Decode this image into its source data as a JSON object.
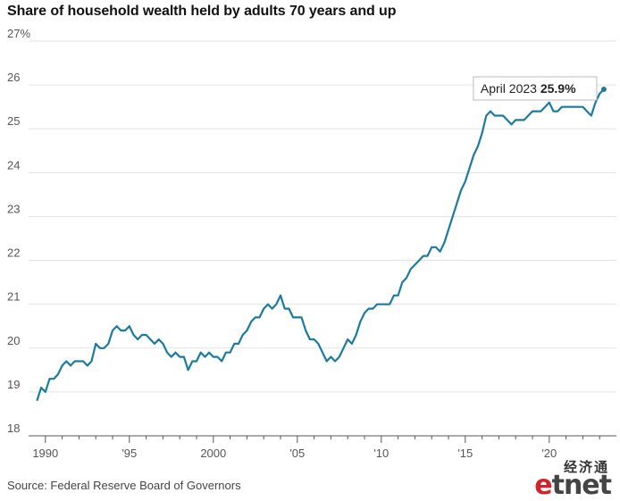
{
  "title": "Share of household wealth held by adults 70 years and up",
  "source": "Source: Federal Reserve Board of Governors",
  "logo": {
    "chinese": "经济通",
    "e_letter": "e",
    "rest": "tnet"
  },
  "colors": {
    "line": "#1a7aa0",
    "grid": "#e3e3e3",
    "axis": "#555555",
    "logo_red": "#d2232a"
  },
  "chart_data": {
    "type": "line",
    "title": "Share of household wealth held by adults 70 years and up",
    "xlabel": "",
    "ylabel": "",
    "ylim": [
      18,
      27
    ],
    "xlim": [
      1989.0,
      2024.0
    ],
    "y_ticks": [
      {
        "value": 18,
        "label": "18"
      },
      {
        "value": 19,
        "label": "19"
      },
      {
        "value": 20,
        "label": "20"
      },
      {
        "value": 21,
        "label": "21"
      },
      {
        "value": 22,
        "label": "22"
      },
      {
        "value": 23,
        "label": "23"
      },
      {
        "value": 24,
        "label": "24"
      },
      {
        "value": 25,
        "label": "25"
      },
      {
        "value": 26,
        "label": "26"
      },
      {
        "value": 27,
        "label": "27%"
      }
    ],
    "x_ticks": [
      {
        "value": 1990,
        "label": "1990"
      },
      {
        "value": 1995,
        "label": "'95"
      },
      {
        "value": 2000,
        "label": "2000"
      },
      {
        "value": 2005,
        "label": "'05"
      },
      {
        "value": 2010,
        "label": "'10"
      },
      {
        "value": 2015,
        "label": "'15"
      },
      {
        "value": 2020,
        "label": "'20"
      }
    ],
    "grid": true,
    "annotation": {
      "label": "April 2023 ",
      "value": "25.9%",
      "x": 2023.25,
      "y": 25.9
    },
    "series": [
      {
        "x": [
          1989.5,
          1989.75,
          1990.0,
          1990.25,
          1990.5,
          1990.75,
          1991.0,
          1991.25,
          1991.5,
          1991.75,
          1992.0,
          1992.25,
          1992.5,
          1992.75,
          1993.0,
          1993.25,
          1993.5,
          1993.75,
          1994.0,
          1994.25,
          1994.5,
          1994.75,
          1995.0,
          1995.25,
          1995.5,
          1995.75,
          1996.0,
          1996.25,
          1996.5,
          1996.75,
          1997.0,
          1997.25,
          1997.5,
          1997.75,
          1998.0,
          1998.25,
          1998.5,
          1998.75,
          1999.0,
          1999.25,
          1999.5,
          1999.75,
          2000.0,
          2000.25,
          2000.5,
          2000.75,
          2001.0,
          2001.25,
          2001.5,
          2001.75,
          2002.0,
          2002.25,
          2002.5,
          2002.75,
          2003.0,
          2003.25,
          2003.5,
          2003.75,
          2004.0,
          2004.25,
          2004.5,
          2004.75,
          2005.0,
          2005.25,
          2005.5,
          2005.75,
          2006.0,
          2006.25,
          2006.5,
          2006.75,
          2007.0,
          2007.25,
          2007.5,
          2007.75,
          2008.0,
          2008.25,
          2008.5,
          2008.75,
          2009.0,
          2009.25,
          2009.5,
          2009.75,
          2010.0,
          2010.25,
          2010.5,
          2010.75,
          2011.0,
          2011.25,
          2011.5,
          2011.75,
          2012.0,
          2012.25,
          2012.5,
          2012.75,
          2013.0,
          2013.25,
          2013.5,
          2013.75,
          2014.0,
          2014.25,
          2014.5,
          2014.75,
          2015.0,
          2015.25,
          2015.5,
          2015.75,
          2016.0,
          2016.25,
          2016.5,
          2016.75,
          2017.0,
          2017.25,
          2017.5,
          2017.75,
          2018.0,
          2018.25,
          2018.5,
          2018.75,
          2019.0,
          2019.25,
          2019.5,
          2019.75,
          2020.0,
          2020.25,
          2020.5,
          2020.75,
          2021.0,
          2021.25,
          2021.5,
          2021.75,
          2022.0,
          2022.25,
          2022.5,
          2022.75,
          2023.0,
          2023.25
        ],
        "values": [
          18.8,
          19.1,
          19.0,
          19.3,
          19.3,
          19.4,
          19.6,
          19.7,
          19.6,
          19.7,
          19.7,
          19.7,
          19.6,
          19.7,
          20.1,
          20.0,
          20.0,
          20.1,
          20.4,
          20.5,
          20.4,
          20.4,
          20.5,
          20.3,
          20.2,
          20.3,
          20.3,
          20.2,
          20.1,
          20.2,
          20.1,
          19.9,
          19.8,
          19.9,
          19.8,
          19.8,
          19.5,
          19.7,
          19.7,
          19.9,
          19.8,
          19.9,
          19.8,
          19.8,
          19.7,
          19.9,
          19.9,
          20.1,
          20.1,
          20.3,
          20.4,
          20.6,
          20.7,
          20.7,
          20.9,
          21.0,
          20.9,
          21.0,
          21.2,
          20.9,
          20.9,
          20.7,
          20.7,
          20.7,
          20.4,
          20.2,
          20.2,
          20.1,
          19.9,
          19.7,
          19.8,
          19.7,
          19.8,
          20.0,
          20.2,
          20.1,
          20.3,
          20.6,
          20.8,
          20.9,
          20.9,
          21.0,
          21.0,
          21.0,
          21.0,
          21.2,
          21.2,
          21.5,
          21.6,
          21.8,
          21.9,
          22.0,
          22.1,
          22.1,
          22.3,
          22.3,
          22.2,
          22.4,
          22.7,
          23.0,
          23.3,
          23.6,
          23.8,
          24.1,
          24.4,
          24.6,
          24.9,
          25.3,
          25.4,
          25.3,
          25.3,
          25.3,
          25.2,
          25.1,
          25.2,
          25.2,
          25.2,
          25.3,
          25.4,
          25.4,
          25.4,
          25.5,
          25.6,
          25.4,
          25.4,
          25.5,
          25.5,
          25.5,
          25.5,
          25.5,
          25.5,
          25.4,
          25.3,
          25.6,
          25.8,
          25.9
        ]
      }
    ]
  }
}
